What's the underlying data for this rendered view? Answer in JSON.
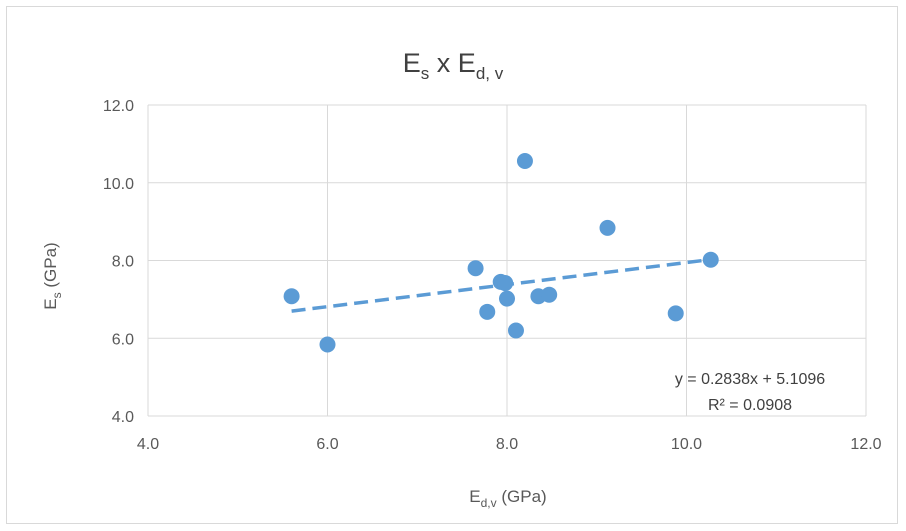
{
  "chart_data": {
    "type": "scatter",
    "title": {
      "main": "E",
      "main_sub": "s",
      "sep": " x ",
      "second": "E",
      "second_sub": "d, v"
    },
    "xlabel": {
      "main": "E",
      "sub": "d,v",
      "rest": " (GPa)"
    },
    "ylabel": {
      "main": "E",
      "sub": "s",
      "rest": " (GPa)"
    },
    "xlim": [
      4.0,
      12.0
    ],
    "ylim": [
      4.0,
      12.0
    ],
    "x_ticks": [
      4.0,
      6.0,
      8.0,
      10.0,
      12.0
    ],
    "y_ticks": [
      4.0,
      6.0,
      8.0,
      10.0,
      12.0
    ],
    "x_tick_labels": [
      "4.0",
      "6.0",
      "8.0",
      "10.0",
      "12.0"
    ],
    "y_tick_labels": [
      "4.0",
      "6.0",
      "8.0",
      "10.0",
      "12.0"
    ],
    "grid": true,
    "series": [
      {
        "points": [
          {
            "x": 5.6,
            "y": 7.08
          },
          {
            "x": 6.0,
            "y": 5.84
          },
          {
            "x": 7.65,
            "y": 7.8
          },
          {
            "x": 7.78,
            "y": 6.68
          },
          {
            "x": 7.93,
            "y": 7.45
          },
          {
            "x": 7.98,
            "y": 7.42
          },
          {
            "x": 8.0,
            "y": 7.02
          },
          {
            "x": 8.1,
            "y": 6.2
          },
          {
            "x": 8.2,
            "y": 10.56
          },
          {
            "x": 8.35,
            "y": 7.08
          },
          {
            "x": 8.47,
            "y": 7.12
          },
          {
            "x": 9.12,
            "y": 8.84
          },
          {
            "x": 9.88,
            "y": 6.64
          },
          {
            "x": 10.27,
            "y": 8.02
          }
        ]
      }
    ],
    "trendline": {
      "type": "linear",
      "slope": 0.2838,
      "intercept": 5.1096,
      "x_range": [
        5.6,
        10.27
      ],
      "equation_label": "y = 0.2838x + 5.1096",
      "r2_label": "R² = 0.0908"
    },
    "colors": {
      "marker": "#5b9bd5",
      "trendline": "#5b9bd5",
      "grid": "#d9d9d9",
      "text": "#595959"
    }
  }
}
